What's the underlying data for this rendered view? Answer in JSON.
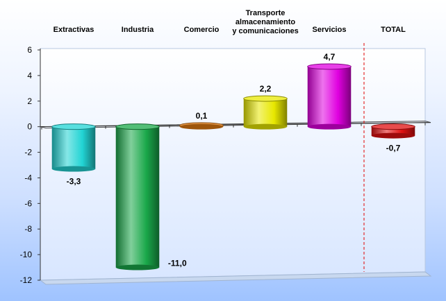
{
  "chart_data": {
    "type": "bar",
    "categories": [
      [
        "Extractivas"
      ],
      [
        "Industria"
      ],
      [
        "Comercio"
      ],
      [
        "Transporte",
        "almacenamiento",
        "y comunicaciones"
      ],
      [
        "Servicios"
      ],
      [
        "TOTAL"
      ]
    ],
    "values": [
      -3.3,
      -11.0,
      0.1,
      2.2,
      4.7,
      -0.7
    ],
    "value_labels": [
      "-3,3",
      "-11,0",
      "0,1",
      "2,2",
      "4,7",
      "-0,7"
    ],
    "colors": [
      "#22d4d4",
      "#1aa84a",
      "#e07a10",
      "#e8e800",
      "#e000e0",
      "#e01010"
    ],
    "ylim": [
      -12,
      6
    ],
    "yticks": [
      "6",
      "4",
      "2",
      "0",
      "-2",
      "-4",
      "-6",
      "-8",
      "-10",
      "-12"
    ],
    "grid": false,
    "separator_before": "TOTAL"
  }
}
